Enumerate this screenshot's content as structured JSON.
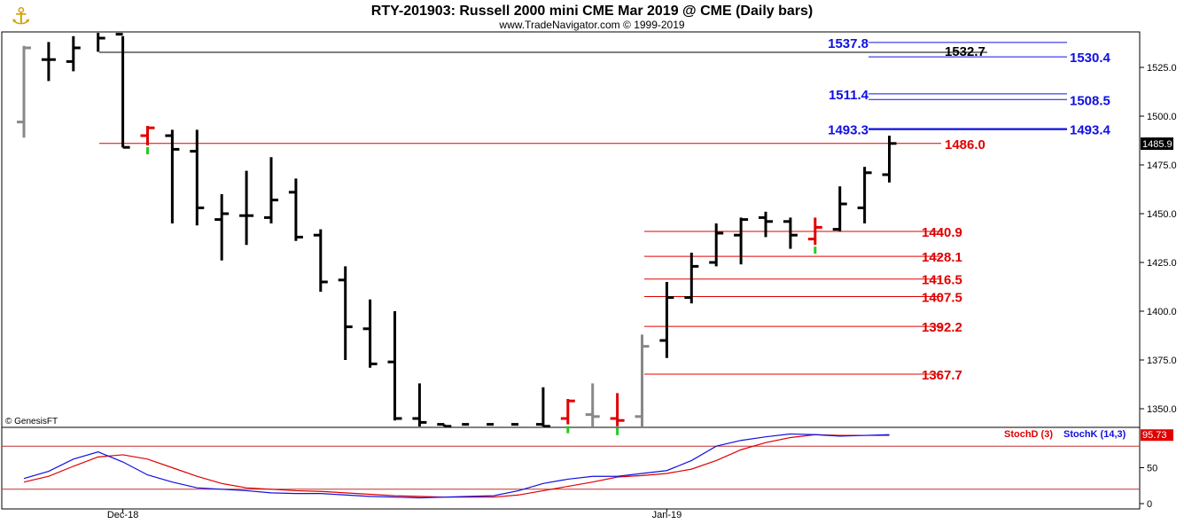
{
  "header": {
    "title": "RTY-201903:  Russell 2000 mini CME Mar 2019 @ CME  (Daily bars)",
    "subtitle": "www.TradeNavigator.com © 1999-2019",
    "logo_icon": "anchor-logo-icon"
  },
  "footer": {
    "credit": "© GenesisFT"
  },
  "colors": {
    "blue": "#1010e0",
    "red": "#e00000",
    "black": "#000000",
    "gray": "#888888",
    "green": "#22cc22"
  },
  "chart_data": [
    {
      "type": "ohlc",
      "y_ticks": [
        "1525.0",
        "1500.0",
        "1475.0",
        "1450.0",
        "1425.0",
        "1400.0",
        "1375.0",
        "1350.0"
      ],
      "x_labels": [
        {
          "label": "Dec-18",
          "bar": 4
        },
        {
          "label": "Jan-19",
          "bar": 26
        }
      ],
      "last_price": "1485.9",
      "bars": [
        {
          "o": 1497,
          "h": 1536,
          "l": 1489,
          "c": 1535,
          "color": "gray"
        },
        {
          "o": 1529,
          "h": 1538,
          "l": 1518,
          "c": 1529,
          "color": "black"
        },
        {
          "o": 1528,
          "h": 1541,
          "l": 1523,
          "c": 1535,
          "color": "black"
        },
        {
          "o": 1545,
          "h": 1552,
          "l": 1533,
          "c": 1540,
          "color": "black"
        },
        {
          "o": 1542,
          "h": 1541,
          "l": 1484,
          "c": 1484,
          "color": "black"
        },
        {
          "o": 1490,
          "h": 1495,
          "l": 1485,
          "c": 1494,
          "color": "red"
        },
        {
          "o": 1490,
          "h": 1493,
          "l": 1445,
          "c": 1483,
          "color": "black"
        },
        {
          "o": 1482,
          "h": 1493,
          "l": 1444,
          "c": 1453,
          "color": "black"
        },
        {
          "o": 1447,
          "h": 1460,
          "l": 1426,
          "c": 1450,
          "color": "black"
        },
        {
          "o": 1449,
          "h": 1472,
          "l": 1434,
          "c": 1449,
          "color": "black"
        },
        {
          "o": 1448,
          "h": 1479,
          "l": 1445,
          "c": 1457,
          "color": "black"
        },
        {
          "o": 1461,
          "h": 1468,
          "l": 1436,
          "c": 1438,
          "color": "black"
        },
        {
          "o": 1439,
          "h": 1442,
          "l": 1410,
          "c": 1415,
          "color": "black"
        },
        {
          "o": 1416,
          "h": 1423,
          "l": 1375,
          "c": 1392,
          "color": "black"
        },
        {
          "o": 1391,
          "h": 1406,
          "l": 1371,
          "c": 1373,
          "color": "black"
        },
        {
          "o": 1374,
          "h": 1400,
          "l": 1344,
          "c": 1345,
          "color": "black"
        },
        {
          "o": 1345,
          "h": 1363,
          "l": 1338,
          "c": 1343,
          "color": "black"
        },
        {
          "o": 1342,
          "h": 1342,
          "l": 1338,
          "c": 1341,
          "color": "black"
        },
        {
          "o": 1342,
          "h": 1340,
          "l": 1338,
          "c": 1340,
          "color": "black"
        },
        {
          "o": 1342,
          "h": 1340,
          "l": 1338,
          "c": 1340,
          "color": "black"
        },
        {
          "o": 1342,
          "h": 1340,
          "l": 1338,
          "c": 1340,
          "color": "black"
        },
        {
          "o": 1342,
          "h": 1361,
          "l": 1338,
          "c": 1341,
          "color": "black"
        },
        {
          "o": 1345,
          "h": 1355,
          "l": 1342,
          "c": 1354,
          "color": "red"
        },
        {
          "o": 1347,
          "h": 1363,
          "l": 1340,
          "c": 1346,
          "color": "gray"
        },
        {
          "o": 1345,
          "h": 1358,
          "l": 1341,
          "c": 1344,
          "color": "red"
        },
        {
          "o": 1346,
          "h": 1388,
          "l": 1340,
          "c": 1382,
          "color": "gray"
        },
        {
          "o": 1385,
          "h": 1415,
          "l": 1376,
          "c": 1407,
          "color": "black"
        },
        {
          "o": 1407,
          "h": 1430,
          "l": 1404,
          "c": 1423,
          "color": "black"
        },
        {
          "o": 1425,
          "h": 1445,
          "l": 1423,
          "c": 1440,
          "color": "black"
        },
        {
          "o": 1439,
          "h": 1448,
          "l": 1424,
          "c": 1447,
          "color": "black"
        },
        {
          "o": 1448,
          "h": 1451,
          "l": 1438,
          "c": 1446,
          "color": "black"
        },
        {
          "o": 1446,
          "h": 1448,
          "l": 1432,
          "c": 1439,
          "color": "black"
        },
        {
          "o": 1437,
          "h": 1448,
          "l": 1434,
          "c": 1443,
          "color": "red"
        },
        {
          "o": 1442,
          "h": 1464,
          "l": 1441,
          "c": 1455,
          "color": "black"
        },
        {
          "o": 1453,
          "h": 1474,
          "l": 1445,
          "c": 1471,
          "color": "black"
        },
        {
          "o": 1470,
          "h": 1490,
          "l": 1466,
          "c": 1486,
          "color": "black"
        }
      ],
      "levels": [
        {
          "value": 1537.8,
          "label": "1537.8",
          "color": "blue",
          "side": "left"
        },
        {
          "value": 1532.7,
          "label": "1532.7",
          "color": "black",
          "side": "mid"
        },
        {
          "value": 1530.4,
          "label": "1530.4",
          "color": "blue",
          "side": "right"
        },
        {
          "value": 1511.4,
          "label": "1511.4",
          "color": "blue",
          "side": "left"
        },
        {
          "value": 1508.5,
          "label": "1508.5",
          "color": "blue",
          "side": "right"
        },
        {
          "value": 1493.3,
          "label": "1493.3",
          "color": "blue",
          "side": "left"
        },
        {
          "value": 1493.4,
          "label": "1493.4",
          "color": "blue",
          "side": "right"
        },
        {
          "value": 1486.0,
          "label": "1486.0",
          "color": "red",
          "side": "mid"
        },
        {
          "value": 1440.9,
          "label": "1440.9",
          "color": "red",
          "side": "mid"
        },
        {
          "value": 1428.1,
          "label": "1428.1",
          "color": "red",
          "side": "mid"
        },
        {
          "value": 1416.5,
          "label": "1416.5",
          "color": "red",
          "side": "mid"
        },
        {
          "value": 1407.5,
          "label": "1407.5",
          "color": "red",
          "side": "mid"
        },
        {
          "value": 1392.2,
          "label": "1392.2",
          "color": "red",
          "side": "mid"
        },
        {
          "value": 1367.7,
          "label": "1367.7",
          "color": "red",
          "side": "mid"
        }
      ]
    },
    {
      "type": "line",
      "y_ticks": [
        "50",
        "0"
      ],
      "overbought": 80,
      "oversold": 20,
      "last_value": "95.73",
      "series": [
        {
          "name": "StochD (3)",
          "color": "red",
          "values": [
            30,
            38,
            52,
            65,
            68,
            62,
            50,
            38,
            28,
            22,
            20,
            18,
            17,
            15,
            13,
            11,
            10,
            9,
            9,
            9,
            12,
            18,
            24,
            30,
            37,
            39,
            42,
            48,
            60,
            75,
            85,
            92,
            96,
            95,
            95,
            95
          ]
        },
        {
          "name": "StochK (14,3)",
          "color": "blue",
          "values": [
            35,
            45,
            62,
            72,
            58,
            40,
            30,
            22,
            20,
            18,
            15,
            14,
            14,
            12,
            10,
            9,
            8,
            9,
            10,
            11,
            18,
            28,
            34,
            38,
            38,
            42,
            46,
            60,
            80,
            88,
            93,
            97,
            96,
            94,
            95,
            96
          ]
        }
      ]
    }
  ]
}
